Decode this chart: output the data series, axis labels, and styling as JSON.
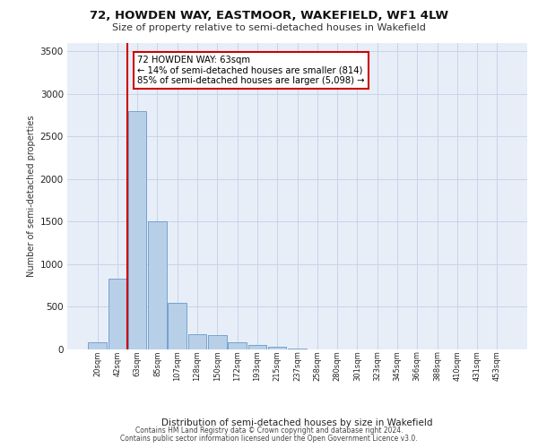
{
  "title1": "72, HOWDEN WAY, EASTMOOR, WAKEFIELD, WF1 4LW",
  "title2": "Size of property relative to semi-detached houses in Wakefield",
  "xlabel": "Distribution of semi-detached houses by size in Wakefield",
  "ylabel": "Number of semi-detached properties",
  "footer1": "Contains HM Land Registry data © Crown copyright and database right 2024.",
  "footer2": "Contains public sector information licensed under the Open Government Licence v3.0.",
  "annotation_line1": "72 HOWDEN WAY: 63sqm",
  "annotation_line2": "← 14% of semi-detached houses are smaller (814)",
  "annotation_line3": "85% of semi-detached houses are larger (5,098) →",
  "categories": [
    "20sqm",
    "42sqm",
    "63sqm",
    "85sqm",
    "107sqm",
    "128sqm",
    "150sqm",
    "172sqm",
    "193sqm",
    "215sqm",
    "237sqm",
    "258sqm",
    "280sqm",
    "301sqm",
    "323sqm",
    "345sqm",
    "366sqm",
    "388sqm",
    "410sqm",
    "431sqm",
    "453sqm"
  ],
  "values": [
    80,
    830,
    2800,
    1500,
    550,
    180,
    170,
    80,
    55,
    30,
    10,
    3,
    2,
    1,
    1,
    1,
    0,
    0,
    0,
    0,
    0
  ],
  "bar_color": "#b8cfe8",
  "bar_edge_color": "#6699cc",
  "red_line_color": "#cc0000",
  "grid_color": "#c8d4e8",
  "background_color": "#e8eef8",
  "ann_box_color": "#ffffff",
  "ann_box_edge": "#cc0000",
  "ylim_max": 3600,
  "yticks": [
    0,
    500,
    1000,
    1500,
    2000,
    2500,
    3000,
    3500
  ]
}
